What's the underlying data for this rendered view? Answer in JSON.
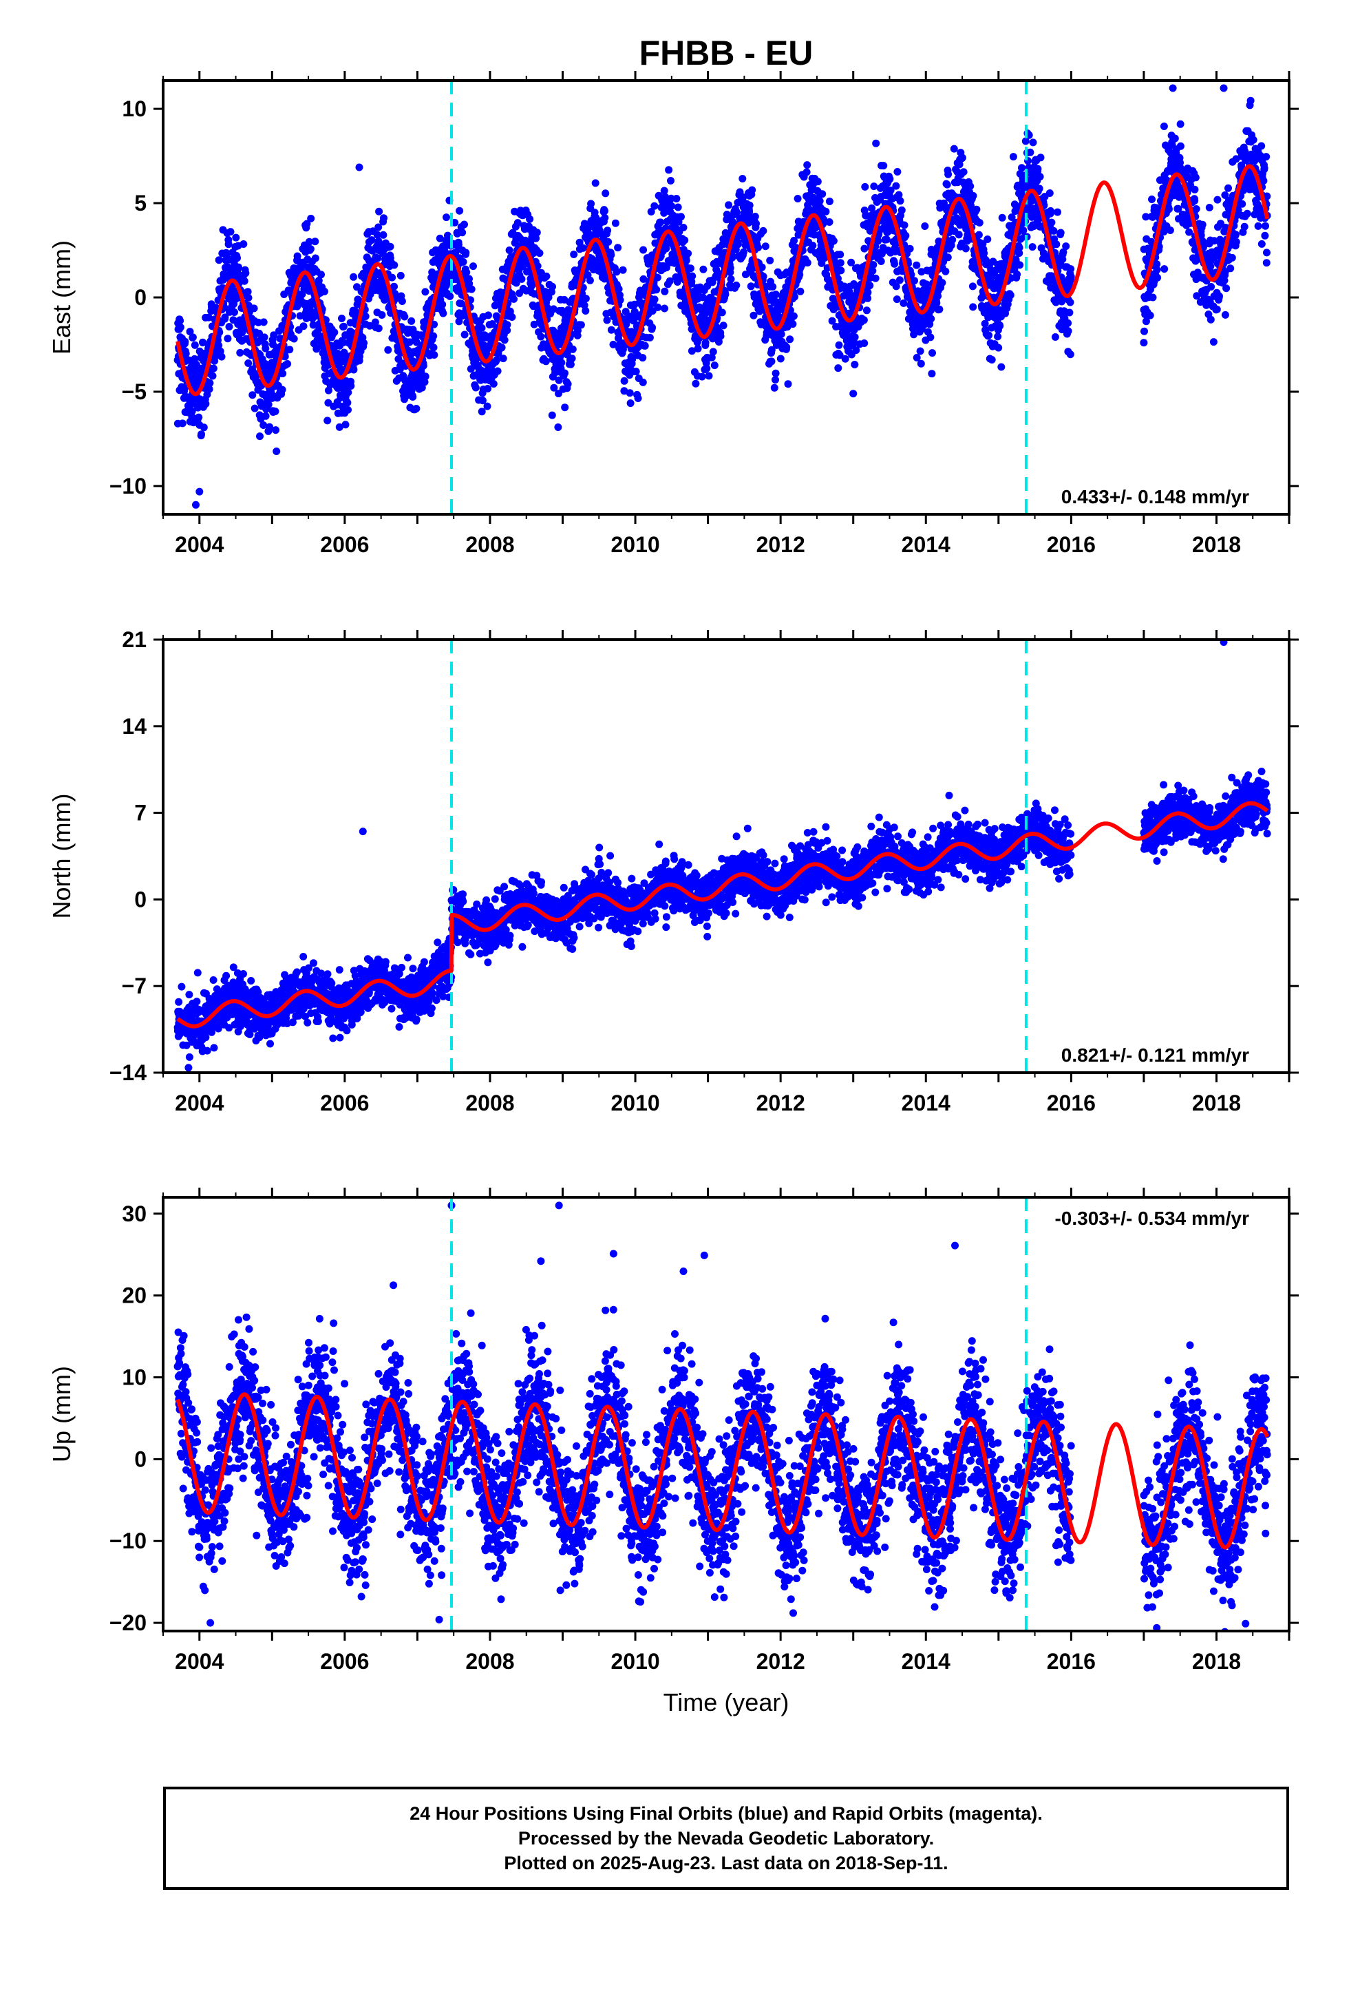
{
  "colors": {
    "data_points": "#0000ff",
    "model_fit": "#ff0000",
    "break_lines": "#00e5e5",
    "frame": "#000000"
  },
  "chart_data": {
    "type": "scatter",
    "title": "FHBB - EU",
    "xlim": [
      2003.5,
      2019.0
    ],
    "x_ticks": [
      2004,
      2006,
      2008,
      2010,
      2012,
      2014,
      2016,
      2018
    ],
    "tick_labels": [
      "2004",
      "2006",
      "2008",
      "2010",
      "2012",
      "2014",
      "2016",
      "2018"
    ],
    "xlabel": "Time (year)",
    "data_span": [
      2003.7,
      2018.7
    ],
    "data_gap": [
      2016.0,
      2017.0
    ],
    "equipment_changes": [
      2007.47,
      2015.38
    ],
    "series_style": {
      "data": "blue dots",
      "model": "red line"
    },
    "panels": [
      {
        "name": "east",
        "ylabel": "East (mm)",
        "ylim": [
          -11.5,
          11.5
        ],
        "y_ticks": [
          -10,
          -5,
          0,
          5,
          10
        ],
        "y_tick_labels": [
          "−10",
          "−5",
          "0",
          "5",
          "10"
        ],
        "rate_label": "0.433+/- 0.148 mm/yr",
        "rate_position": "bottom-right",
        "model": {
          "offset_2004": -2.2,
          "slope": 0.433,
          "amplitude": 2.9,
          "peak_phase": 0.45,
          "steps": []
        },
        "data_scatter": 1.25,
        "data_extremes": [
          [
            2003.95,
            -11.0
          ],
          [
            2004.0,
            -10.3
          ],
          [
            2006.2,
            6.9
          ],
          [
            2017.4,
            11.1
          ],
          [
            2018.1,
            11.1
          ],
          [
            2013.0,
            -5.1
          ],
          [
            2017.0,
            -2.4
          ]
        ]
      },
      {
        "name": "north",
        "ylabel": "North (mm)",
        "ylim": [
          -14,
          21
        ],
        "y_ticks": [
          -14,
          -7,
          0,
          7,
          14,
          21
        ],
        "y_tick_labels": [
          "−14",
          "−7",
          "0",
          "7",
          "14",
          "21"
        ],
        "rate_label": "0.821+/- 0.121 mm/yr",
        "rate_position": "bottom-right",
        "model": {
          "offset_2004": -9.4,
          "slope": 0.821,
          "amplitude": 0.8,
          "peak_phase": 0.45,
          "steps": [
            [
              2007.47,
              4.5
            ]
          ]
        },
        "data_scatter": 1.0,
        "data_extremes": [
          [
            2006.25,
            5.5
          ],
          [
            2018.1,
            20.8
          ],
          [
            2003.85,
            -13.6
          ]
        ]
      },
      {
        "name": "up",
        "ylabel": "Up (mm)",
        "ylim": [
          -21,
          32
        ],
        "y_ticks": [
          -20,
          -10,
          0,
          10,
          20,
          30
        ],
        "y_tick_labels": [
          "−20",
          "−10",
          "0",
          "10",
          "20",
          "30"
        ],
        "rate_label": "-0.303+/- 0.534 mm/yr",
        "rate_position": "top-right",
        "model": {
          "offset_2004": 0.8,
          "slope": -0.303,
          "amplitude": 7.3,
          "peak_phase": 0.62,
          "steps": []
        },
        "data_scatter": 4.0,
        "data_extremes": [
          [
            2007.47,
            31.0
          ],
          [
            2008.95,
            31.0
          ],
          [
            2014.4,
            26.1
          ],
          [
            2009.7,
            25.1
          ],
          [
            2010.95,
            24.9
          ],
          [
            2008.7,
            24.2
          ],
          [
            2004.15,
            -20.0
          ],
          [
            2018.4,
            -20.1
          ],
          [
            2007.3,
            -19.6
          ]
        ]
      }
    ]
  },
  "footer": {
    "line1": "24 Hour Positions Using Final Orbits (blue) and Rapid Orbits (magenta).",
    "line2": "Processed by the Nevada Geodetic Laboratory.",
    "line3": "Plotted on 2025-Aug-23. Last data on 2018-Sep-11."
  }
}
